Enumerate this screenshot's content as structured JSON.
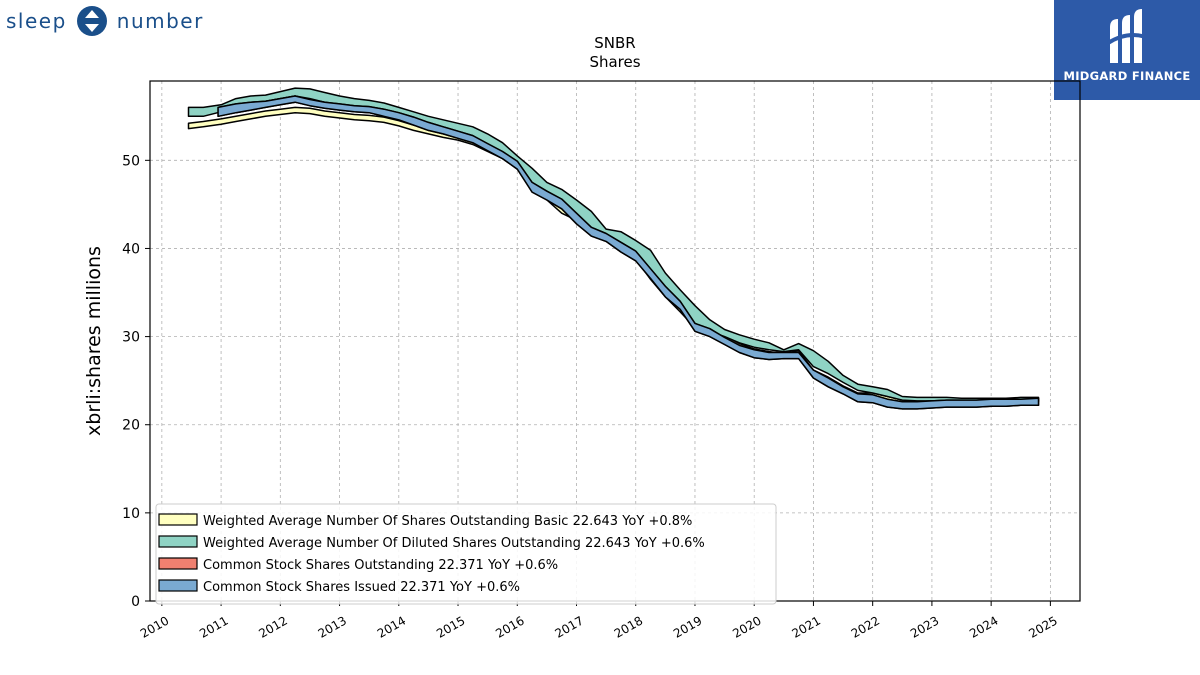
{
  "brand": {
    "left_text": "sleep",
    "right_text": "number",
    "badge_text": "MIDGARD FINANCE",
    "brand_color": "#1a4f8a",
    "badge_color": "#2d5aa8"
  },
  "chart_data": {
    "type": "area",
    "title": "SNBR",
    "subtitle": "Shares",
    "xlabel": "",
    "ylabel": "xbrli:shares millions",
    "xlim": [
      2009.8,
      2025.5
    ],
    "ylim": [
      0,
      59
    ],
    "x_ticks": [
      "2010",
      "2011",
      "2012",
      "2013",
      "2014",
      "2015",
      "2016",
      "2017",
      "2018",
      "2019",
      "2020",
      "2021",
      "2022",
      "2023",
      "2024",
      "2025"
    ],
    "y_ticks": [
      0,
      10,
      20,
      30,
      40,
      50
    ],
    "grid": true,
    "legend_position": "bottom-left",
    "series": [
      {
        "name": "Weighted Average Number Of Shares Outstanding Basic  22.643 YoY +0.8%",
        "color": "#ffffc0",
        "x": [
          2010.45,
          2010.7,
          2011.0,
          2011.25,
          2011.5,
          2011.75,
          2012.0,
          2012.25,
          2012.5,
          2012.75,
          2013.0,
          2013.25,
          2013.5,
          2013.75,
          2014.0,
          2014.25,
          2014.5,
          2014.75,
          2015.0,
          2015.25,
          2015.5,
          2015.75,
          2016.0,
          2016.25,
          2016.5,
          2016.75,
          2017.0,
          2017.25,
          2017.5,
          2017.75,
          2018.0,
          2018.25,
          2018.5,
          2018.75,
          2019.0,
          2019.25,
          2019.5,
          2019.75,
          2020.0,
          2020.25,
          2020.5,
          2020.75,
          2021.0,
          2021.25,
          2021.5,
          2021.75,
          2022.0,
          2022.25,
          2022.5,
          2022.75,
          2023.0,
          2023.25,
          2023.5,
          2023.75,
          2024.0,
          2024.25,
          2024.5,
          2024.8
        ],
        "y0": [
          53.6,
          53.8,
          54.1,
          54.4,
          54.7,
          55.0,
          55.2,
          55.4,
          55.3,
          55.0,
          54.8,
          54.6,
          54.5,
          54.3,
          53.9,
          53.4,
          53.0,
          52.6,
          52.3,
          51.8,
          51.0,
          50.2,
          49.0,
          47.0,
          45.5,
          44.0,
          43.2,
          41.8,
          41.0,
          40.0,
          38.8,
          36.5,
          34.5,
          32.8,
          31.0,
          30.2,
          29.5,
          28.6,
          28.0,
          27.7,
          27.5,
          27.8,
          25.6,
          24.8,
          23.8,
          23.0,
          23.0,
          22.6,
          22.4,
          22.4,
          22.4,
          22.5,
          22.5,
          22.5,
          22.5,
          22.5,
          22.6,
          22.6
        ],
        "y1": [
          54.2,
          54.4,
          54.7,
          55.0,
          55.3,
          55.6,
          55.8,
          56.0,
          55.9,
          55.6,
          55.4,
          55.2,
          55.1,
          54.9,
          54.5,
          54.0,
          53.6,
          53.2,
          52.9,
          52.4,
          51.6,
          50.8,
          49.6,
          47.6,
          46.1,
          44.6,
          43.8,
          42.4,
          41.6,
          40.6,
          39.4,
          37.1,
          35.1,
          33.4,
          31.6,
          30.8,
          30.1,
          29.2,
          28.6,
          28.3,
          28.1,
          28.4,
          26.2,
          25.4,
          24.4,
          23.6,
          23.6,
          23.2,
          22.8,
          22.8,
          22.8,
          22.8,
          22.8,
          22.8,
          22.8,
          22.8,
          22.8,
          22.8
        ]
      },
      {
        "name": "Weighted Average Number Of Diluted Shares Outstanding  22.643 YoY +0.6%",
        "color": "#8fd3c4",
        "x": [
          2010.45,
          2010.7,
          2011.0,
          2011.25,
          2011.5,
          2011.75,
          2012.0,
          2012.25,
          2012.5,
          2012.75,
          2013.0,
          2013.25,
          2013.5,
          2013.75,
          2014.0,
          2014.25,
          2014.5,
          2014.75,
          2015.0,
          2015.25,
          2015.5,
          2015.75,
          2016.0,
          2016.25,
          2016.5,
          2016.75,
          2017.0,
          2017.25,
          2017.5,
          2017.75,
          2018.0,
          2018.25,
          2018.5,
          2018.75,
          2019.0,
          2019.25,
          2019.5,
          2019.75,
          2020.0,
          2020.25,
          2020.5,
          2020.75,
          2021.0,
          2021.25,
          2021.5,
          2021.75,
          2022.0,
          2022.25,
          2022.5,
          2022.75,
          2023.0,
          2023.25,
          2023.5,
          2023.75,
          2024.0,
          2024.25,
          2024.5,
          2024.8
        ],
        "y0": [
          55.0,
          55.0,
          55.5,
          56.0,
          56.5,
          56.7,
          57.0,
          57.3,
          57.0,
          56.6,
          56.3,
          56.0,
          55.8,
          55.5,
          55.0,
          54.5,
          54.0,
          53.5,
          53.0,
          52.5,
          51.5,
          50.5,
          49.3,
          47.3,
          46.0,
          45.0,
          43.7,
          42.2,
          41.3,
          40.5,
          39.3,
          36.8,
          34.8,
          33.2,
          31.5,
          30.6,
          30.0,
          29.3,
          28.8,
          28.5,
          28.3,
          28.5,
          26.6,
          25.8,
          24.8,
          23.9,
          23.6,
          23.2,
          22.8,
          22.7,
          22.7,
          22.7,
          22.7,
          22.7,
          22.7,
          22.7,
          22.8,
          22.8
        ],
        "y1": [
          56.0,
          56.0,
          56.3,
          57.0,
          57.3,
          57.4,
          57.8,
          58.2,
          58.1,
          57.7,
          57.3,
          57.0,
          56.8,
          56.5,
          56.0,
          55.5,
          55.0,
          54.6,
          54.2,
          53.8,
          53.0,
          52.0,
          50.5,
          49.1,
          47.5,
          46.7,
          45.5,
          44.2,
          42.2,
          41.9,
          40.9,
          39.8,
          37.2,
          35.3,
          33.5,
          31.9,
          30.8,
          30.2,
          29.7,
          29.3,
          28.5,
          29.2,
          28.4,
          27.2,
          25.6,
          24.6,
          24.3,
          24.0,
          23.2,
          23.1,
          23.1,
          23.1,
          23.0,
          23.0,
          23.0,
          23.0,
          23.1,
          23.1
        ]
      },
      {
        "name": "Common Stock Shares Outstanding  22.371 YoY +0.6%",
        "color": "#f08070",
        "x": [
          2010.95,
          2011.25,
          2011.5,
          2011.75,
          2012.0,
          2012.25,
          2012.5,
          2012.75,
          2013.0,
          2013.25,
          2013.5,
          2013.75,
          2014.0,
          2014.25,
          2014.5,
          2014.75,
          2015.0,
          2015.25,
          2015.5,
          2015.75,
          2016.0,
          2016.25,
          2016.5,
          2016.75,
          2017.0,
          2017.25,
          2017.5,
          2017.75,
          2018.0,
          2018.25,
          2018.5,
          2018.75,
          2019.0,
          2019.25,
          2019.5,
          2019.75,
          2020.0,
          2020.25,
          2020.5,
          2020.75,
          2021.0,
          2021.25,
          2021.5,
          2021.75,
          2022.0,
          2022.25,
          2022.5,
          2022.75,
          2023.0,
          2023.25,
          2023.5,
          2023.75,
          2024.0,
          2024.25,
          2024.5,
          2024.8
        ],
        "y0": [
          55.0,
          55.4,
          55.7,
          56.0,
          56.3,
          56.6,
          56.2,
          55.9,
          55.7,
          55.5,
          55.4,
          55.0,
          54.6,
          54.0,
          53.4,
          53.0,
          52.5,
          52.0,
          51.1,
          50.2,
          49.0,
          46.4,
          45.5,
          44.5,
          42.8,
          41.4,
          40.8,
          39.6,
          38.6,
          36.6,
          34.5,
          33.1,
          30.6,
          30.0,
          29.1,
          28.2,
          27.6,
          27.4,
          27.5,
          27.5,
          25.3,
          24.3,
          23.5,
          22.6,
          22.5,
          22.0,
          21.8,
          21.8,
          21.9,
          22.0,
          22.0,
          22.0,
          22.1,
          22.1,
          22.2,
          22.2
        ],
        "y1": [
          56.0,
          56.4,
          56.6,
          56.7,
          57.0,
          57.3,
          56.9,
          56.6,
          56.4,
          56.2,
          56.1,
          55.8,
          55.4,
          54.9,
          54.3,
          53.8,
          53.3,
          52.8,
          51.9,
          51.0,
          49.9,
          47.5,
          46.5,
          45.6,
          44.0,
          42.4,
          41.7,
          40.7,
          39.7,
          37.7,
          35.7,
          34.0,
          31.5,
          30.9,
          29.9,
          29.0,
          28.5,
          28.2,
          28.2,
          28.2,
          26.2,
          25.3,
          24.3,
          23.5,
          23.4,
          22.9,
          22.6,
          22.6,
          22.7,
          22.8,
          22.8,
          22.8,
          22.9,
          22.9,
          22.9,
          23.0
        ]
      },
      {
        "name": "Common Stock Shares Issued  22.371 YoY +0.6%",
        "color": "#7aaad2",
        "x": [
          2010.95,
          2011.25,
          2011.5,
          2011.75,
          2012.0,
          2012.25,
          2012.5,
          2012.75,
          2013.0,
          2013.25,
          2013.5,
          2013.75,
          2014.0,
          2014.25,
          2014.5,
          2014.75,
          2015.0,
          2015.25,
          2015.5,
          2015.75,
          2016.0,
          2016.25,
          2016.5,
          2016.75,
          2017.0,
          2017.25,
          2017.5,
          2017.75,
          2018.0,
          2018.25,
          2018.5,
          2018.75,
          2019.0,
          2019.25,
          2019.5,
          2019.75,
          2020.0,
          2020.25,
          2020.5,
          2020.75,
          2021.0,
          2021.25,
          2021.5,
          2021.75,
          2022.0,
          2022.25,
          2022.5,
          2022.75,
          2023.0,
          2023.25,
          2023.5,
          2023.75,
          2024.0,
          2024.25,
          2024.5,
          2024.8
        ],
        "y0": [
          55.0,
          55.4,
          55.7,
          56.0,
          56.3,
          56.6,
          56.2,
          55.9,
          55.7,
          55.5,
          55.4,
          55.0,
          54.6,
          54.0,
          53.4,
          53.0,
          52.5,
          52.0,
          51.1,
          50.2,
          49.0,
          46.4,
          45.5,
          44.5,
          42.8,
          41.4,
          40.8,
          39.6,
          38.6,
          36.6,
          34.5,
          33.1,
          30.6,
          30.0,
          29.1,
          28.2,
          27.6,
          27.4,
          27.5,
          27.5,
          25.3,
          24.3,
          23.5,
          22.6,
          22.5,
          22.0,
          21.8,
          21.8,
          21.9,
          22.0,
          22.0,
          22.0,
          22.1,
          22.1,
          22.2,
          22.2
        ],
        "y1": [
          56.0,
          56.4,
          56.6,
          56.7,
          57.0,
          57.3,
          56.9,
          56.6,
          56.4,
          56.2,
          56.1,
          55.8,
          55.4,
          54.9,
          54.3,
          53.8,
          53.3,
          52.8,
          51.9,
          51.0,
          49.9,
          47.5,
          46.5,
          45.6,
          44.0,
          42.4,
          41.7,
          40.7,
          39.7,
          37.7,
          35.7,
          34.0,
          31.5,
          30.9,
          29.9,
          29.0,
          28.5,
          28.2,
          28.2,
          28.2,
          26.2,
          25.3,
          24.3,
          23.5,
          23.4,
          22.9,
          22.6,
          22.6,
          22.7,
          22.8,
          22.8,
          22.8,
          22.9,
          22.9,
          22.9,
          23.0
        ]
      }
    ]
  }
}
